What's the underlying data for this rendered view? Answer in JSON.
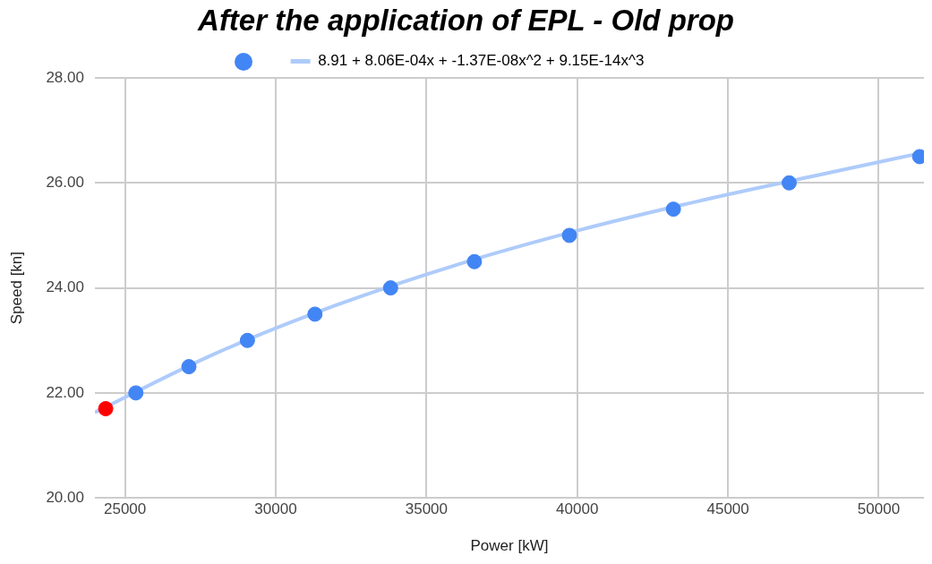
{
  "chart_data": {
    "type": "scatter",
    "title": "After the application of EPL - Old prop",
    "xlabel": "Power [kW]",
    "ylabel": "Speed [kn]",
    "xlim": [
      24000,
      51500
    ],
    "xticks": [
      25000,
      30000,
      35000,
      40000,
      45000,
      50000
    ],
    "ylim": [
      20,
      28
    ],
    "yticks": [
      {
        "value": 20,
        "label": "20.00"
      },
      {
        "value": 22,
        "label": "22.00"
      },
      {
        "value": 24,
        "label": "24.00"
      },
      {
        "value": 26,
        "label": "26.00"
      },
      {
        "value": 28,
        "label": "28.00"
      }
    ],
    "grid": true,
    "legend": "top",
    "marker": "circle",
    "series": [
      {
        "type": "scatter",
        "color": "#4285f4",
        "colors": [
          "#ff0000",
          "#4285f4",
          "#4285f4",
          "#4285f4",
          "#4285f4",
          "#4285f4",
          "#4285f4",
          "#4285f4",
          "#4285f4",
          "#4285f4",
          "#4285f4"
        ],
        "x": [
          24360,
          25360,
          27120,
          29060,
          31300,
          33810,
          36590,
          39740,
          43190,
          47030,
          51360
        ],
        "values": [
          21.7,
          22,
          22.5,
          23,
          23.5,
          24,
          24.5,
          25,
          25.5,
          26,
          26.5
        ]
      },
      {
        "type": "line",
        "name": "8.91 + 8.06E-04x + -1.37E-08x^2 + 9.15E-14x^3",
        "color": "#aecbfa",
        "marker": "none",
        "x": [
          24000,
          28000,
          32000,
          36000,
          40000,
          44000,
          48000,
          51500
        ],
        "values": [
          21.63,
          22.75,
          23.67,
          24.44,
          25.09,
          25.65,
          26.15,
          26.58
        ]
      }
    ]
  }
}
